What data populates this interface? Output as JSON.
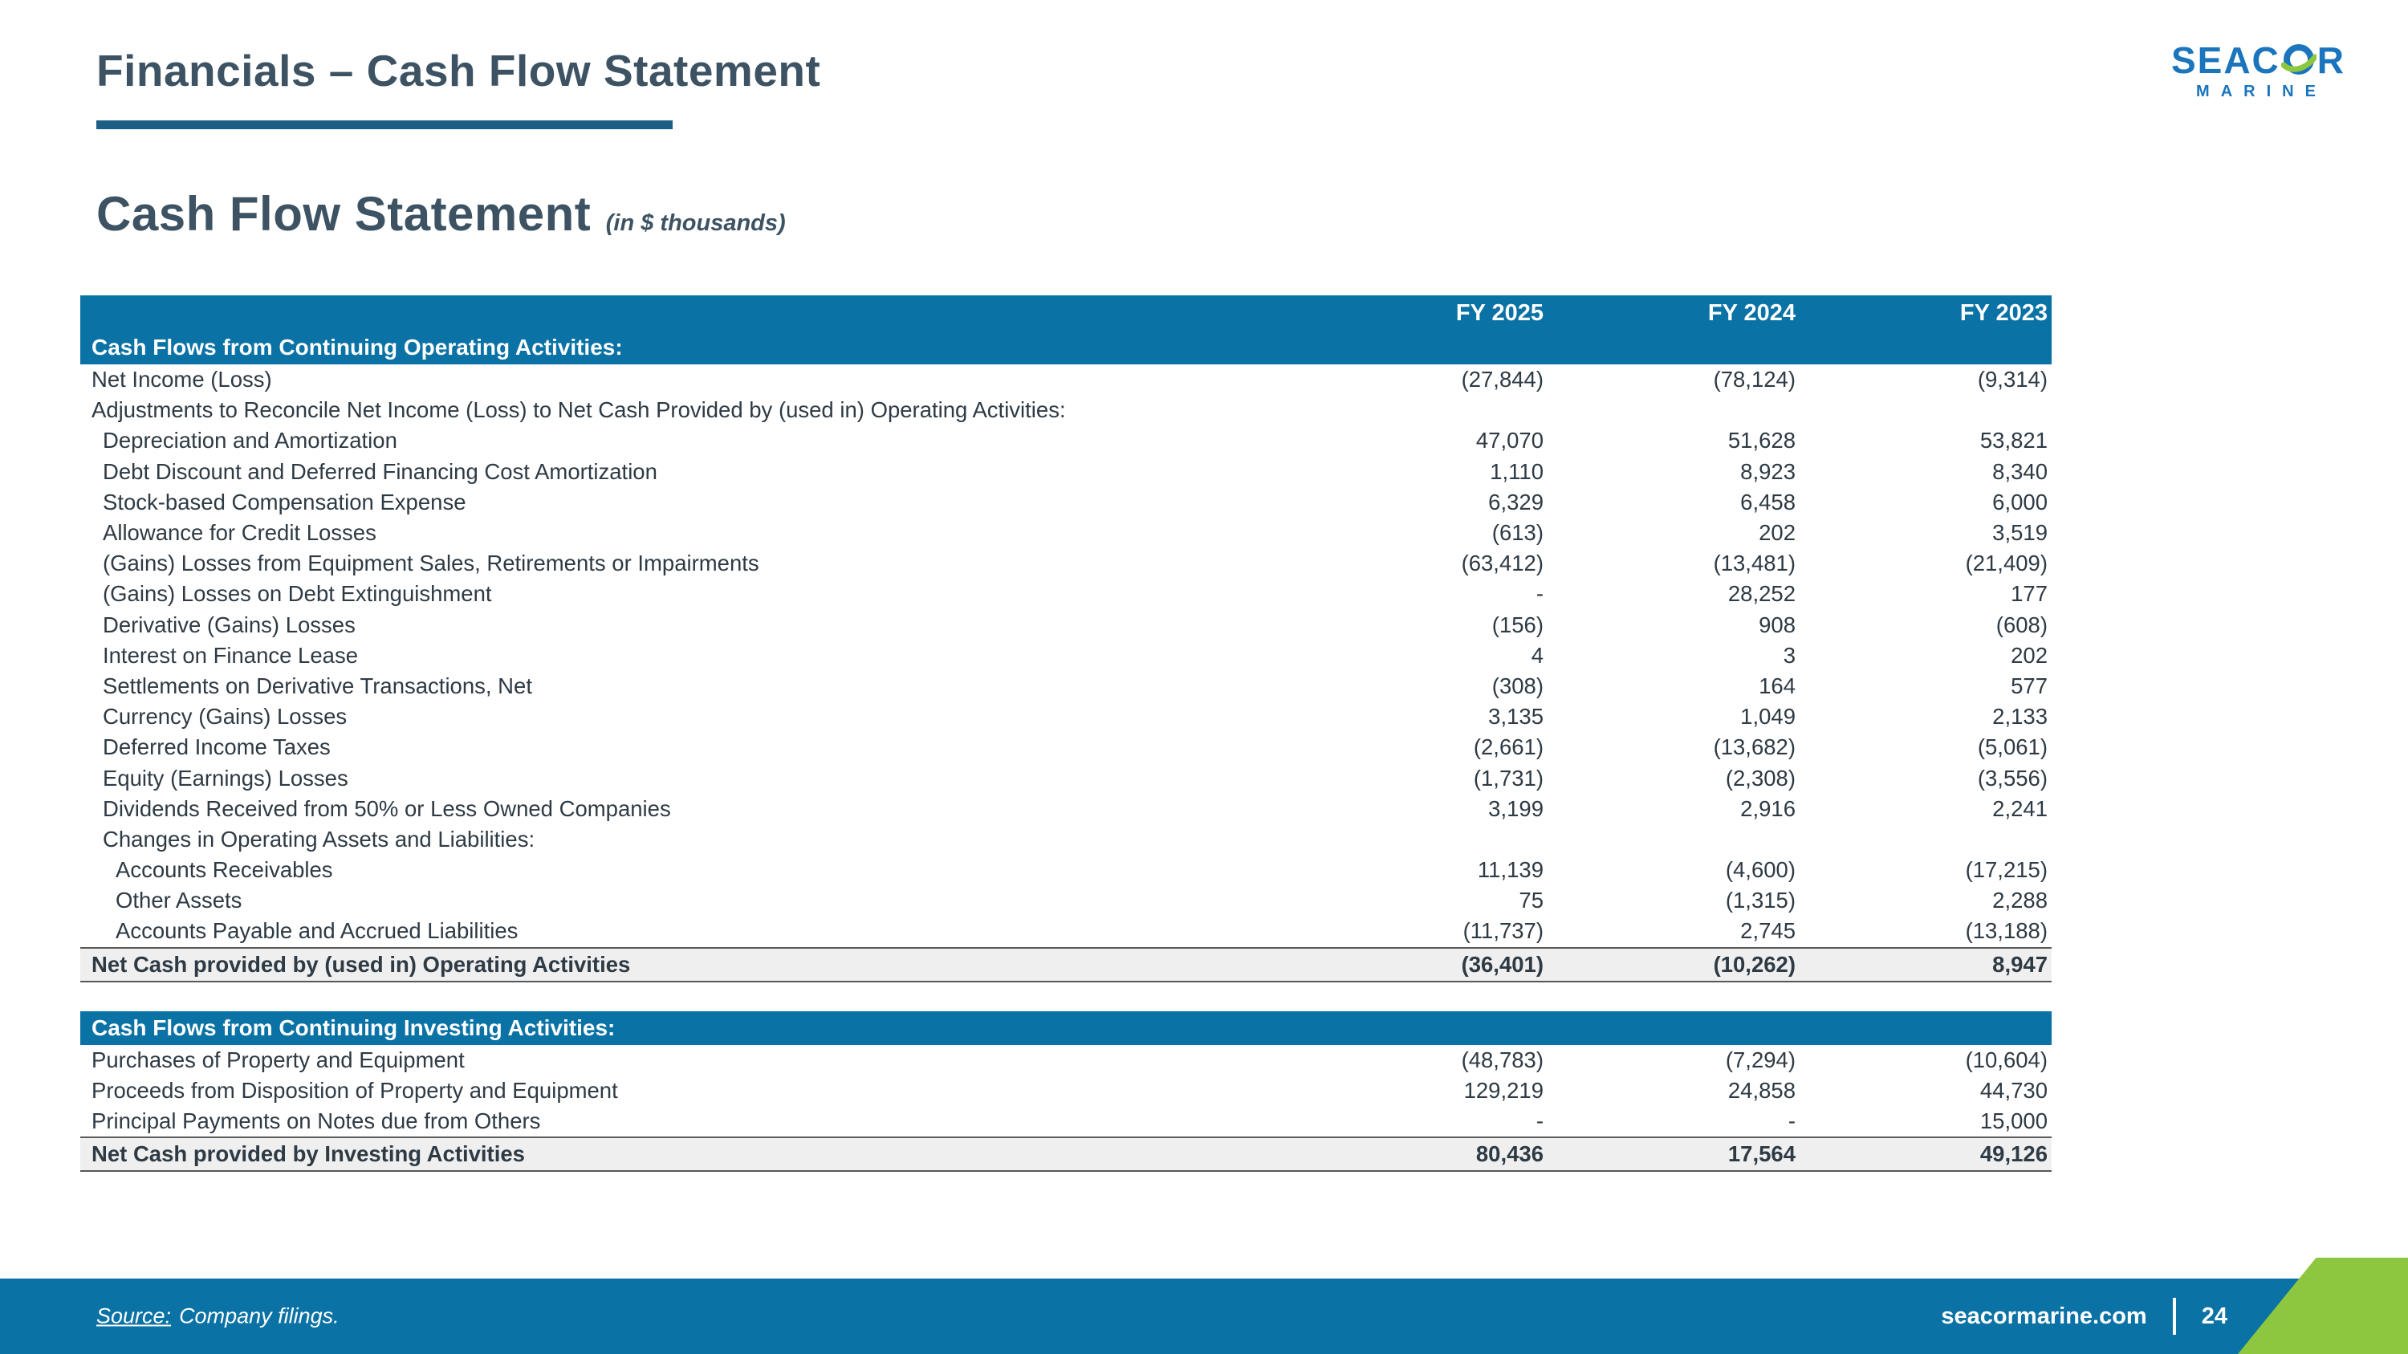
{
  "slide": {
    "title": "Financials – Cash Flow Statement",
    "section_title": "Cash Flow Statement",
    "section_subtitle": "(in $ thousands)",
    "logo": {
      "word_part1": "SEAC",
      "word_part2": "R",
      "line2": "MARINE",
      "blue": "#1B75BC",
      "green": "#8DC63F"
    },
    "footer": {
      "source_label": "Source:",
      "source_text": "Company filings.",
      "website": "seacormarine.com",
      "page_number": "24"
    },
    "colors": {
      "brand_blue": "#0A72A5",
      "accent_green": "#8DC63F",
      "title_slate": "#3D5363",
      "total_row_bg": "#EFEFEF"
    }
  },
  "table": {
    "columns": [
      "FY 2025",
      "FY 2024",
      "FY 2023"
    ],
    "sections": [
      {
        "header": "Cash Flows from Continuing Operating Activities:",
        "rows": [
          {
            "label": "Net Income (Loss)",
            "indent": 1,
            "values": [
              "(27,844)",
              "(78,124)",
              "(9,314)"
            ]
          },
          {
            "label": "Adjustments to Reconcile Net Income (Loss) to Net Cash Provided by (used in) Operating Activities:",
            "indent": 1,
            "values": [
              "",
              "",
              ""
            ]
          },
          {
            "label": "Depreciation and Amortization",
            "indent": 2,
            "values": [
              "47,070",
              "51,628",
              "53,821"
            ]
          },
          {
            "label": "Debt Discount and Deferred Financing Cost Amortization",
            "indent": 2,
            "values": [
              "1,110",
              "8,923",
              "8,340"
            ]
          },
          {
            "label": "Stock-based Compensation Expense",
            "indent": 2,
            "values": [
              "6,329",
              "6,458",
              "6,000"
            ]
          },
          {
            "label": "Allowance for Credit Losses",
            "indent": 2,
            "values": [
              "(613)",
              "202",
              "3,519"
            ]
          },
          {
            "label": "(Gains) Losses from Equipment Sales, Retirements or Impairments",
            "indent": 2,
            "values": [
              "(63,412)",
              "(13,481)",
              "(21,409)"
            ]
          },
          {
            "label": "(Gains) Losses on Debt Extinguishment",
            "indent": 2,
            "values": [
              "-",
              "28,252",
              "177"
            ]
          },
          {
            "label": "Derivative (Gains) Losses",
            "indent": 2,
            "values": [
              "(156)",
              "908",
              "(608)"
            ]
          },
          {
            "label": "Interest on Finance Lease",
            "indent": 2,
            "values": [
              "4",
              "3",
              "202"
            ]
          },
          {
            "label": "Settlements on Derivative Transactions, Net",
            "indent": 2,
            "values": [
              "(308)",
              "164",
              "577"
            ]
          },
          {
            "label": "Currency (Gains) Losses",
            "indent": 2,
            "values": [
              "3,135",
              "1,049",
              "2,133"
            ]
          },
          {
            "label": "Deferred Income Taxes",
            "indent": 2,
            "values": [
              "(2,661)",
              "(13,682)",
              "(5,061)"
            ]
          },
          {
            "label": "Equity (Earnings) Losses",
            "indent": 2,
            "values": [
              "(1,731)",
              "(2,308)",
              "(3,556)"
            ]
          },
          {
            "label": "Dividends Received from 50% or Less Owned Companies",
            "indent": 2,
            "values": [
              "3,199",
              "2,916",
              "2,241"
            ]
          },
          {
            "label": "Changes in Operating Assets and Liabilities:",
            "indent": 2,
            "values": [
              "",
              "",
              ""
            ]
          },
          {
            "label": "Accounts Receivables",
            "indent": 3,
            "values": [
              "11,139",
              "(4,600)",
              "(17,215)"
            ]
          },
          {
            "label": "Other Assets",
            "indent": 3,
            "values": [
              "75",
              "(1,315)",
              "2,288"
            ]
          },
          {
            "label": "Accounts Payable and Accrued Liabilities",
            "indent": 3,
            "values": [
              "(11,737)",
              "2,745",
              "(13,188)"
            ]
          }
        ],
        "total": {
          "label": "Net Cash provided by (used in) Operating Activities",
          "values": [
            "(36,401)",
            "(10,262)",
            "8,947"
          ]
        }
      },
      {
        "header": "Cash Flows from Continuing Investing Activities:",
        "rows": [
          {
            "label": "Purchases of Property and Equipment",
            "indent": 1,
            "values": [
              "(48,783)",
              "(7,294)",
              "(10,604)"
            ]
          },
          {
            "label": "Proceeds from Disposition of Property and Equipment",
            "indent": 1,
            "values": [
              "129,219",
              "24,858",
              "44,730"
            ]
          },
          {
            "label": "Principal Payments on Notes due from Others",
            "indent": 1,
            "values": [
              "-",
              "-",
              "15,000"
            ]
          }
        ],
        "total": {
          "label": "Net Cash provided by Investing Activities",
          "values": [
            "80,436",
            "17,564",
            "49,126"
          ]
        }
      }
    ]
  }
}
